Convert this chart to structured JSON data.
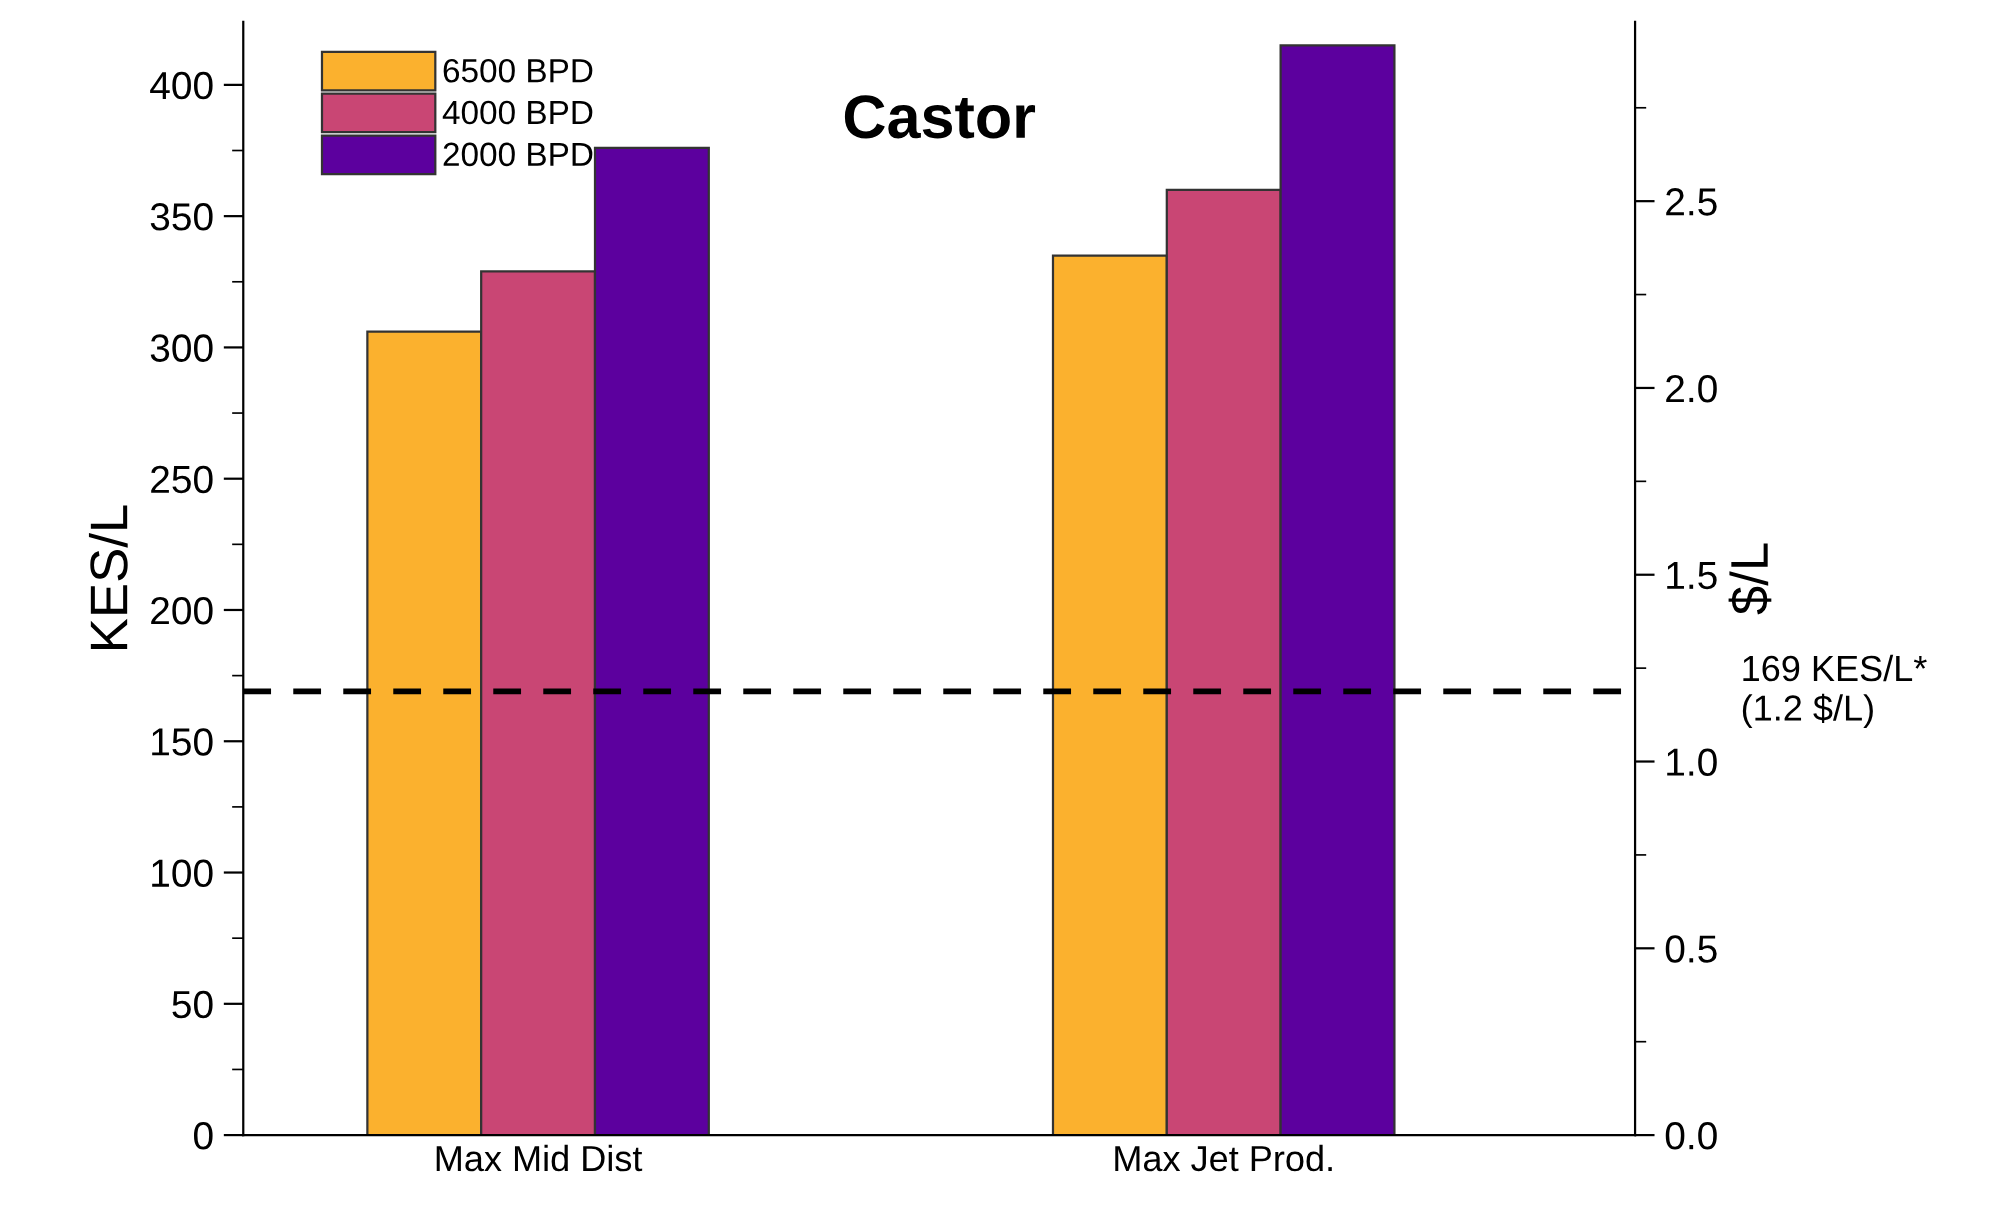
{
  "chart_data": {
    "type": "bar",
    "title": "Castor",
    "ylabel": "KES/L",
    "y2label": "$/L",
    "categories": [
      "Max Mid Dist",
      "Max Jet Prod."
    ],
    "series": [
      {
        "name": "6500 BPD",
        "color": "#fbb12e",
        "values": [
          306,
          335
        ]
      },
      {
        "name": "4000 BPD",
        "color": "#c94674",
        "values": [
          329,
          360
        ]
      },
      {
        "name": "2000 BPD",
        "color": "#5c009e",
        "values": [
          376,
          415
        ]
      }
    ],
    "ylim": [
      0,
      424
    ],
    "yticks": [
      0,
      50,
      100,
      150,
      200,
      250,
      300,
      350,
      400
    ],
    "y2lim": [
      0,
      2.98
    ],
    "y2ticks": [
      {
        "value": 0,
        "label": "0.0"
      },
      0.5,
      {
        "value": 1,
        "label": "1.0"
      },
      1.5,
      {
        "value": 2,
        "label": "2.0"
      },
      2.5
    ],
    "ref_lines": [
      {
        "axis": "y",
        "value": 169,
        "label": "169 KES/L*\n(1.2 $/L)",
        "color": "#000000",
        "line_style": "dashed"
      }
    ],
    "legend": "top left",
    "grid": false
  }
}
